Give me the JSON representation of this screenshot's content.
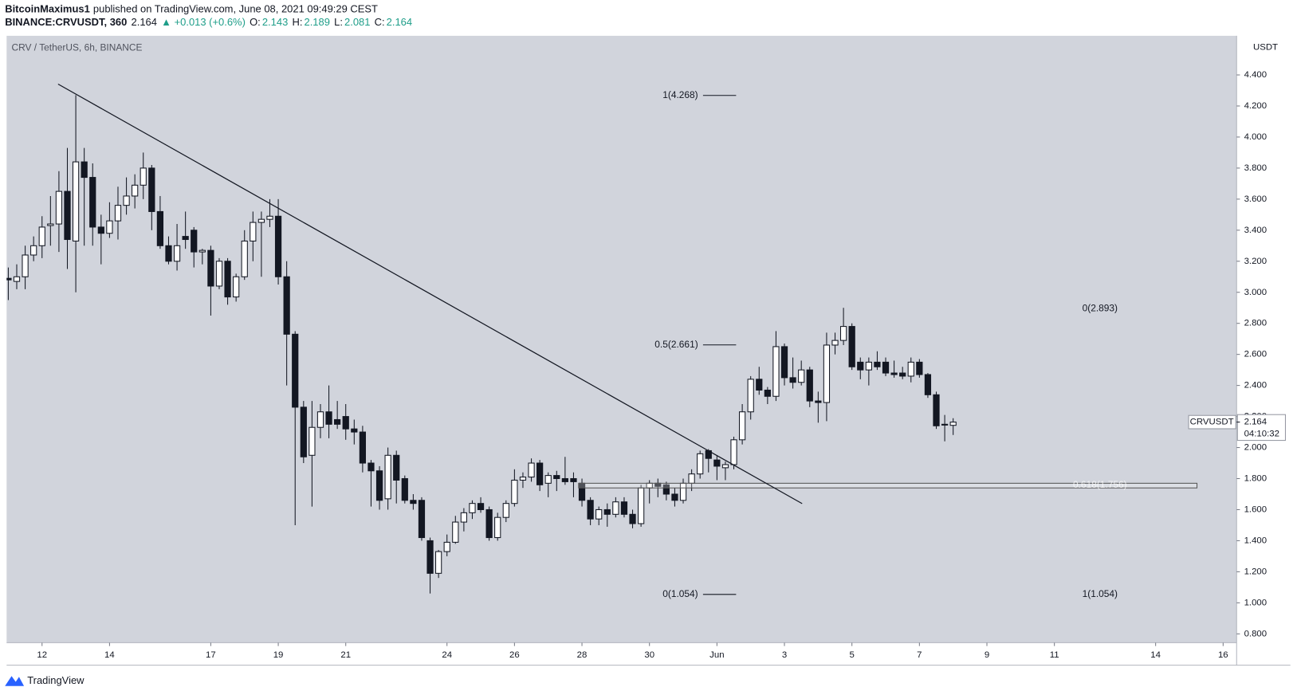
{
  "header": {
    "author": "BitcoinMaximus1",
    "published": "published on TradingView.com, June 08, 2021 09:49:29 CEST",
    "symbol": "BINANCE:CRVUSDT, 360",
    "change": "▲ +0.013 (+0.6%)",
    "ohlc_labels": [
      "O:",
      "H:",
      "L:",
      "C:"
    ]
  },
  "footer": {
    "brand": "TradingView"
  },
  "chart_data": {
    "type": "candlestick",
    "title": "CRV / TetherUS, 6h, BINANCE",
    "y_unit": "USDT",
    "open": [
      3.09,
      3.07,
      3.1,
      3.24,
      3.3,
      3.43,
      3.44,
      3.65,
      3.33,
      3.84,
      3.74,
      3.42,
      3.38,
      3.46,
      3.56,
      3.62,
      3.69,
      3.8,
      3.52,
      3.3,
      3.2,
      3.36,
      3.4,
      3.26,
      3.27,
      3.04,
      3.2,
      2.97,
      3.1,
      3.33,
      3.45,
      3.47,
      3.49,
      3.1,
      2.73,
      2.26,
      1.95,
      2.13,
      2.23,
      2.18,
      2.2,
      2.12,
      2.1,
      1.9,
      1.85,
      1.67,
      1.95,
      1.8,
      1.66,
      1.66,
      1.4,
      1.19,
      1.33,
      1.39,
      1.52,
      1.58,
      1.64,
      1.6,
      1.42,
      1.55,
      1.64,
      1.79,
      1.81,
      1.9,
      1.77,
      1.82,
      1.8,
      1.8,
      1.77,
      1.66,
      1.54,
      1.6,
      1.57,
      1.65,
      1.57,
      1.51,
      1.74,
      1.77,
      1.76,
      1.7,
      1.66,
      1.77,
      1.83,
      1.98,
      1.92,
      1.87,
      1.89,
      2.05,
      2.23,
      2.44,
      2.37,
      2.33,
      2.65,
      2.45,
      2.42,
      2.5,
      2.3,
      2.29,
      2.66,
      2.69,
      2.78,
      2.55,
      2.5,
      2.55,
      2.55,
      2.48,
      2.48,
      2.46,
      2.55,
      2.47,
      2.34,
      2.15,
      2.143
    ],
    "high": [
      3.16,
      3.18,
      3.3,
      3.36,
      3.49,
      3.62,
      3.78,
      3.93,
      4.27,
      3.93,
      3.83,
      3.5,
      3.58,
      3.68,
      3.74,
      3.76,
      3.9,
      3.82,
      3.62,
      3.36,
      3.44,
      3.52,
      3.42,
      3.28,
      3.3,
      3.22,
      3.22,
      3.12,
      3.4,
      3.52,
      3.52,
      3.6,
      3.6,
      3.2,
      2.75,
      2.3,
      2.3,
      2.28,
      2.4,
      2.3,
      2.28,
      2.18,
      2.14,
      1.92,
      1.88,
      2.0,
      1.98,
      1.82,
      1.7,
      1.68,
      1.42,
      1.34,
      1.44,
      1.56,
      1.61,
      1.66,
      1.68,
      1.62,
      1.58,
      1.66,
      1.86,
      1.84,
      1.93,
      1.92,
      1.84,
      1.85,
      1.94,
      1.84,
      1.8,
      1.68,
      1.62,
      1.64,
      1.68,
      1.68,
      1.6,
      1.76,
      1.79,
      1.8,
      1.78,
      1.74,
      1.8,
      1.86,
      1.98,
      1.99,
      1.95,
      1.91,
      2.07,
      2.28,
      2.46,
      2.52,
      2.39,
      2.75,
      2.67,
      2.58,
      2.56,
      2.52,
      2.36,
      2.74,
      2.74,
      2.9,
      2.8,
      2.58,
      2.58,
      2.62,
      2.58,
      2.56,
      2.52,
      2.58,
      2.57,
      2.48,
      2.36,
      2.21,
      2.189
    ],
    "low": [
      2.95,
      3.02,
      3.02,
      3.2,
      3.22,
      3.3,
      3.26,
      3.15,
      3.0,
      3.3,
      3.3,
      3.18,
      3.35,
      3.34,
      3.5,
      3.54,
      3.6,
      3.4,
      3.28,
      3.18,
      3.14,
      3.28,
      3.16,
      3.18,
      2.85,
      3.02,
      2.92,
      2.94,
      3.08,
      3.2,
      3.1,
      3.42,
      3.05,
      2.4,
      1.5,
      1.9,
      1.62,
      2.06,
      2.06,
      2.12,
      2.05,
      2.02,
      1.84,
      1.62,
      1.6,
      1.6,
      1.64,
      1.64,
      1.6,
      1.4,
      1.06,
      1.16,
      1.3,
      1.38,
      1.46,
      1.54,
      1.58,
      1.4,
      1.4,
      1.52,
      1.62,
      1.74,
      1.78,
      1.72,
      1.68,
      1.72,
      1.76,
      1.68,
      1.62,
      1.5,
      1.5,
      1.49,
      1.55,
      1.55,
      1.48,
      1.49,
      1.64,
      1.68,
      1.66,
      1.62,
      1.64,
      1.72,
      1.8,
      1.84,
      1.79,
      1.79,
      1.86,
      2.02,
      2.18,
      2.34,
      2.28,
      2.3,
      2.4,
      2.38,
      2.4,
      2.26,
      2.16,
      2.17,
      2.6,
      2.66,
      2.5,
      2.44,
      2.4,
      2.5,
      2.46,
      2.45,
      2.44,
      2.42,
      2.45,
      2.32,
      2.12,
      2.04,
      2.081
    ],
    "close": [
      3.08,
      3.1,
      3.24,
      3.3,
      3.42,
      3.44,
      3.65,
      3.34,
      3.84,
      3.74,
      3.42,
      3.38,
      3.46,
      3.56,
      3.62,
      3.69,
      3.8,
      3.52,
      3.3,
      3.2,
      3.3,
      3.34,
      3.26,
      3.27,
      3.04,
      3.2,
      2.97,
      3.1,
      3.33,
      3.45,
      3.47,
      3.49,
      3.1,
      2.73,
      2.26,
      1.94,
      2.13,
      2.23,
      2.15,
      2.15,
      2.12,
      2.1,
      1.9,
      1.85,
      1.66,
      1.95,
      1.79,
      1.66,
      1.64,
      1.42,
      1.19,
      1.33,
      1.39,
      1.52,
      1.58,
      1.64,
      1.6,
      1.42,
      1.55,
      1.64,
      1.79,
      1.81,
      1.9,
      1.76,
      1.82,
      1.8,
      1.78,
      1.78,
      1.66,
      1.54,
      1.6,
      1.57,
      1.65,
      1.57,
      1.51,
      1.74,
      1.77,
      1.75,
      1.7,
      1.66,
      1.77,
      1.83,
      1.96,
      1.93,
      1.88,
      1.89,
      2.05,
      2.23,
      2.44,
      2.37,
      2.33,
      2.65,
      2.45,
      2.42,
      2.5,
      2.3,
      2.29,
      2.66,
      2.69,
      2.78,
      2.52,
      2.5,
      2.55,
      2.52,
      2.48,
      2.47,
      2.46,
      2.55,
      2.47,
      2.34,
      2.14,
      2.15,
      2.164
    ],
    "up_color": "#ffffff",
    "down_color": "#131722",
    "background": "#d1d4dc",
    "grid": false,
    "xlim": [
      -0.2,
      145.6
    ],
    "xticks": [
      {
        "value": 4,
        "label": "12"
      },
      {
        "value": 12,
        "label": "14"
      },
      {
        "value": 24,
        "label": "17"
      },
      {
        "value": 32,
        "label": "19"
      },
      {
        "value": 40,
        "label": "21"
      },
      {
        "value": 52,
        "label": "24"
      },
      {
        "value": 60,
        "label": "26"
      },
      {
        "value": 68,
        "label": "28"
      },
      {
        "value": 76,
        "label": "30"
      },
      {
        "value": 84,
        "label": "Jun"
      },
      {
        "value": 92,
        "label": "3"
      },
      {
        "value": 100,
        "label": "5"
      },
      {
        "value": 108,
        "label": "7"
      },
      {
        "value": 116,
        "label": "9"
      },
      {
        "value": 124,
        "label": "11"
      },
      {
        "value": 136,
        "label": "14"
      },
      {
        "value": 144,
        "label": "16"
      }
    ],
    "ylim": [
      0.743,
      4.652
    ],
    "yticks": [
      {
        "value": 0.8,
        "label": "0.800"
      },
      {
        "value": 1.0,
        "label": "1.000"
      },
      {
        "value": 1.2,
        "label": "1.200"
      },
      {
        "value": 1.4,
        "label": "1.400"
      },
      {
        "value": 1.6,
        "label": "1.600"
      },
      {
        "value": 1.8,
        "label": "1.800"
      },
      {
        "value": 2.0,
        "label": "2.000"
      },
      {
        "value": 2.2,
        "label": "2.200"
      },
      {
        "value": 2.4,
        "label": "2.400"
      },
      {
        "value": 2.6,
        "label": "2.600"
      },
      {
        "value": 2.8,
        "label": "2.800"
      },
      {
        "value": 3.0,
        "label": "3.000"
      },
      {
        "value": 3.2,
        "label": "3.200"
      },
      {
        "value": 3.4,
        "label": "3.400"
      },
      {
        "value": 3.6,
        "label": "3.600"
      },
      {
        "value": 3.8,
        "label": "3.800"
      },
      {
        "value": 4.0,
        "label": "4.000"
      },
      {
        "value": 4.2,
        "label": "4.200"
      },
      {
        "value": 4.4,
        "label": "4.400"
      }
    ],
    "trendline": {
      "x": [
        5.9,
        94.1
      ],
      "y": [
        4.341,
        1.639
      ]
    },
    "zone": {
      "x": [
        67.6,
        140.9
      ],
      "y": [
        1.74,
        1.77
      ]
    },
    "fib_left": {
      "x": [
        82.35,
        86.27
      ],
      "levels": [
        {
          "label": "1(4.268)",
          "value": 4.268
        },
        {
          "label": "0.5(2.661)",
          "value": 2.661
        },
        {
          "label": "0(1.054)",
          "value": 1.054
        }
      ]
    },
    "fib_right": {
      "x": 129.4,
      "levels": [
        {
          "label": "0(2.893)",
          "value": 2.893
        },
        {
          "label": "0.618(1.756)",
          "value": 1.756
        },
        {
          "label": "1(1.054)",
          "value": 1.054
        }
      ]
    },
    "price_label": {
      "symbol": "CRVUSDT",
      "countdown": "04:10:32"
    }
  }
}
